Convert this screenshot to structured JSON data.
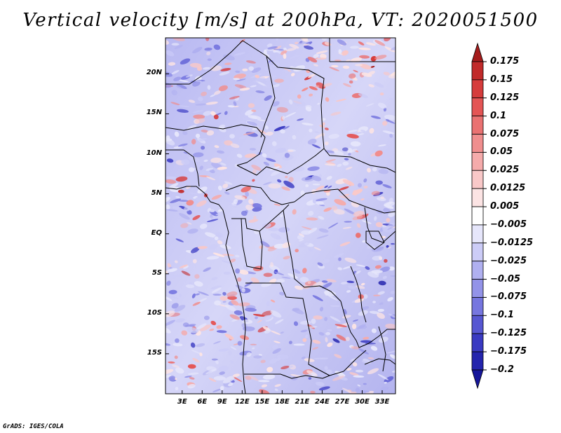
{
  "title": "Vertical velocity [m/s] at 200hPa, VT: 2020051500",
  "map": {
    "lat_labels": [
      "20N",
      "15N",
      "10N",
      "5N",
      "EQ",
      "5S",
      "10S",
      "15S"
    ],
    "lat_values": [
      20,
      15,
      10,
      5,
      0,
      -5,
      -10,
      -15
    ],
    "lon_labels": [
      "3E",
      "6E",
      "9E",
      "12E",
      "15E",
      "18E",
      "21E",
      "24E",
      "27E",
      "30E",
      "33E"
    ],
    "lon_values": [
      3,
      6,
      9,
      12,
      15,
      18,
      21,
      24,
      27,
      30,
      33
    ],
    "lon_range": [
      0.5,
      35
    ],
    "lat_range": [
      -20,
      24.5
    ]
  },
  "colorbar": {
    "labels": [
      "0.175",
      "0.15",
      "0.125",
      "0.1",
      "0.075",
      "0.05",
      "0.025",
      "0.0125",
      "0.005",
      "−0.005",
      "−0.0125",
      "−0.025",
      "−0.05",
      "−0.075",
      "−0.1",
      "−0.125",
      "−0.175",
      "−0.2"
    ],
    "colors": [
      "#a51c1c",
      "#c12a2a",
      "#d63c3c",
      "#e45555",
      "#ea7272",
      "#f08e8e",
      "#f5abab",
      "#f9c8c8",
      "#fce4e4",
      "#ffffff",
      "#e6e6fb",
      "#ccccf7",
      "#b0b0f0",
      "#9393e8",
      "#7676df",
      "#5757d2",
      "#3a3ac2",
      "#2424ad",
      "#15159a"
    ]
  },
  "credit": "GrADS: IGES/COLA"
}
